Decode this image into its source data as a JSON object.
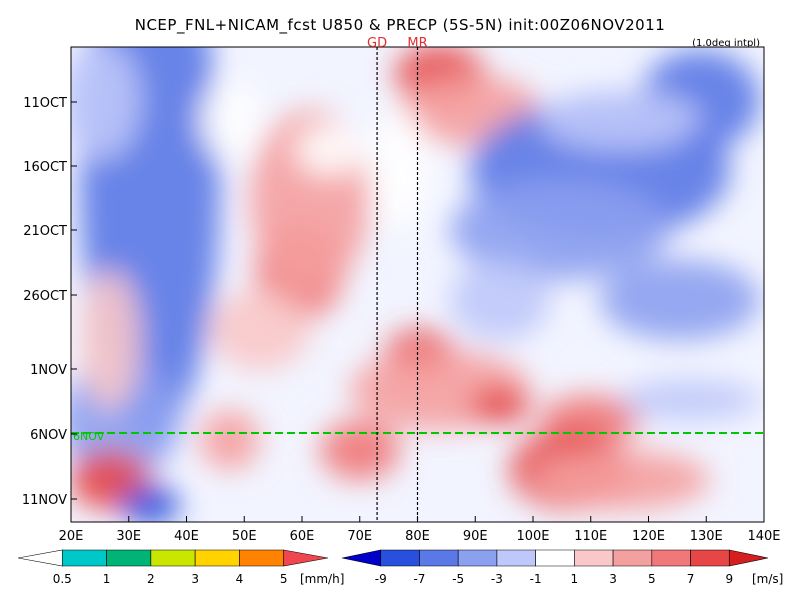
{
  "chart_data": {
    "type": "heatmap",
    "title": "NCEP_FNL+NICAM_fcst U850 & PRECP (5S-5N) init:00Z06NOV2011",
    "subtitle": "(1.0deg intpl)",
    "x_ticks": [
      "20E",
      "30E",
      "40E",
      "50E",
      "60E",
      "70E",
      "80E",
      "90E",
      "100E",
      "110E",
      "120E",
      "130E",
      "140E"
    ],
    "x_range": [
      20,
      140
    ],
    "y_ticks": [
      "11OCT",
      "16OCT",
      "21OCT",
      "26OCT",
      "1NOV",
      "6NOV",
      "11NOV"
    ],
    "init_line_label": "6NOV",
    "markers": [
      {
        "label": "GD",
        "lon": 73
      },
      {
        "label": "MR",
        "lon": 80
      }
    ],
    "precip_legend": {
      "labels": [
        "0.5",
        "1",
        "2",
        "3",
        "4",
        "5"
      ],
      "unit": "[mm/h]",
      "colors": [
        "#ffffff",
        "#00c8c8",
        "#00b478",
        "#c8e600",
        "#ffd200",
        "#ff8200",
        "#f04650"
      ]
    },
    "wind_legend": {
      "labels": [
        "-9",
        "-7",
        "-5",
        "-3",
        "-1",
        "1",
        "3",
        "5",
        "7",
        "9"
      ],
      "unit": "[m/s]",
      "colors": [
        "#0000c8",
        "#2850dc",
        "#5a78e6",
        "#8ca0f0",
        "#bec8fa",
        "#ffffff",
        "#fac8c8",
        "#f5a0a0",
        "#f07878",
        "#e64646",
        "#d71e1e"
      ]
    }
  }
}
